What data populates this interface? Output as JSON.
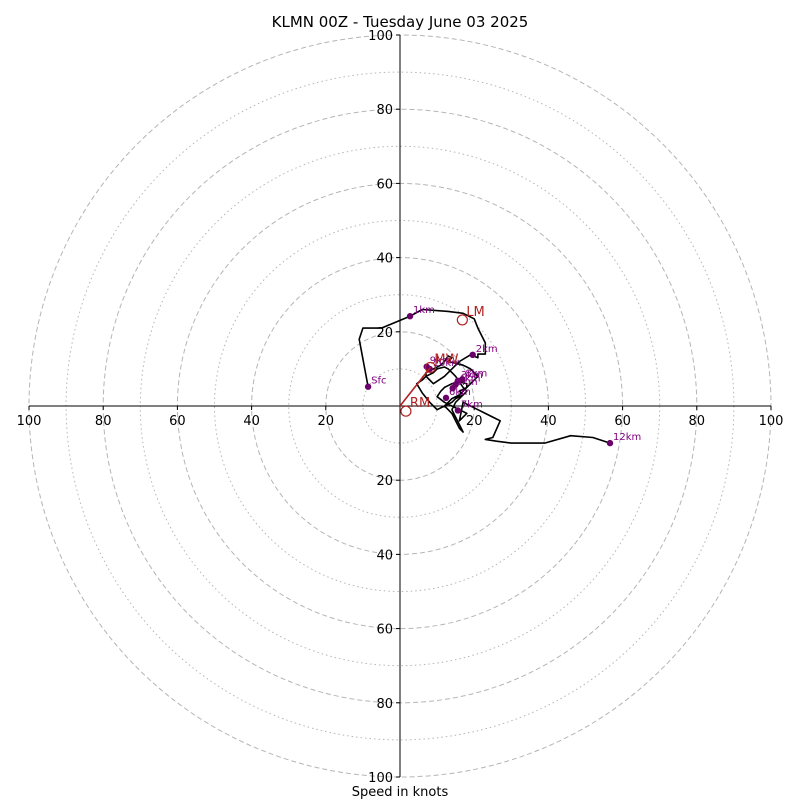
{
  "chart_data": {
    "type": "line",
    "title": "KLMN 00Z - Tuesday June 03 2025",
    "xlabel": "Speed in knots",
    "ylabel": "",
    "xlim": [
      -100,
      100
    ],
    "ylim": [
      -100,
      100
    ],
    "rings_dashed": [
      20,
      40,
      60,
      80,
      100
    ],
    "rings_dotted": [
      10,
      30,
      50,
      70,
      90
    ],
    "grid": true,
    "x_tick_labels": [
      "100",
      "80",
      "60",
      "40",
      "20",
      "20",
      "40",
      "60",
      "80",
      "100"
    ],
    "x_tick_values": [
      -100,
      -80,
      -60,
      -40,
      -20,
      20,
      40,
      60,
      80,
      100
    ],
    "y_tick_labels": [
      "100",
      "80",
      "60",
      "40",
      "20",
      "20",
      "40",
      "60",
      "80",
      "100"
    ],
    "y_tick_values": [
      100,
      80,
      60,
      40,
      20,
      -20,
      -40,
      -60,
      -80,
      -100
    ],
    "series": [
      {
        "color": "#000000",
        "x": [
          -8.6,
          -11,
          -10,
          -5,
          2.7,
          6,
          13,
          17,
          20,
          21,
          23,
          23,
          21,
          21,
          19,
          16,
          14,
          12,
          9,
          8,
          7,
          7,
          9,
          11,
          12,
          13,
          14,
          13,
          15,
          17,
          19,
          21,
          18,
          16,
          17,
          15,
          14,
          12,
          10,
          8,
          6,
          4.5,
          6,
          7,
          9,
          10,
          12,
          13,
          14,
          15,
          16,
          17,
          18,
          17,
          16,
          15,
          14,
          15,
          16,
          17,
          16,
          15,
          14,
          13,
          12,
          13,
          14,
          16,
          17,
          18,
          18,
          16,
          15,
          14,
          13,
          12,
          11,
          10,
          12,
          14,
          16,
          18,
          17,
          16,
          17,
          19,
          21,
          23,
          25,
          27,
          25,
          23,
          26,
          30,
          39,
          46,
          52,
          56.6
        ],
        "y": [
          5.2,
          18,
          21,
          21,
          24.2,
          26,
          25.5,
          25,
          23.5,
          21,
          17,
          14,
          14,
          13,
          13.8,
          12,
          10,
          8,
          6,
          7,
          8,
          9,
          10,
          11,
          12,
          13.5,
          13,
          12,
          11.5,
          11,
          10,
          8,
          5,
          4,
          3,
          2,
          1,
          0,
          -1,
          1,
          3.5,
          6,
          7,
          8,
          9,
          10,
          10.5,
          10,
          9,
          8,
          6.5,
          5,
          4,
          3,
          2,
          1,
          -1,
          -3,
          -5,
          -7,
          -6,
          -4,
          -2,
          -1,
          0,
          1,
          2,
          3,
          4,
          5,
          6,
          6.5,
          6.2,
          6,
          5.5,
          5,
          4,
          2.5,
          1,
          0,
          -1,
          -2,
          -3,
          -4,
          1,
          0,
          -1,
          -2,
          -3,
          -4,
          -8.5,
          -9,
          -9.5,
          -10,
          -10,
          -8,
          -8.5,
          -10
        ],
        "name": ""
      }
    ],
    "height_points": [
      {
        "label": "Sfc",
        "x": -8.6,
        "y": 5.2
      },
      {
        "label": "1km",
        "x": 2.7,
        "y": 24.2
      },
      {
        "label": "2km",
        "x": 19.6,
        "y": 13.8
      },
      {
        "label": "3km",
        "x": 15.6,
        "y": 6.8
      },
      {
        "label": "4km",
        "x": 15.0,
        "y": 5.8
      },
      {
        "label": "5km",
        "x": 14.2,
        "y": 4.8
      },
      {
        "label": "6km",
        "x": 12.4,
        "y": 2.2
      },
      {
        "label": "7km",
        "x": 15.6,
        "y": -1.2
      },
      {
        "label": "8km",
        "x": 16.8,
        "y": 7.2
      },
      {
        "label": "9km",
        "x": 7.2,
        "y": 10.6
      },
      {
        "label": "10km",
        "x": 8.0,
        "y": 10.0
      },
      {
        "label": "12km",
        "x": 56.6,
        "y": -10.0
      }
    ],
    "storm_motion": [
      {
        "label": "LM",
        "x": 16.8,
        "y": 23.2
      },
      {
        "label": "MW",
        "x": 8.2,
        "y": 10.4
      },
      {
        "label": "RM",
        "x": 1.6,
        "y": -1.4
      }
    ],
    "storm_motion_vector": {
      "from": [
        0,
        0
      ],
      "to": [
        8.2,
        10.4
      ]
    },
    "colors": {
      "trace": "#000000",
      "points": "#6a006a",
      "point_labels": "#800080",
      "storm_marker": "#b22222",
      "grid": "#b5b5b5"
    }
  }
}
